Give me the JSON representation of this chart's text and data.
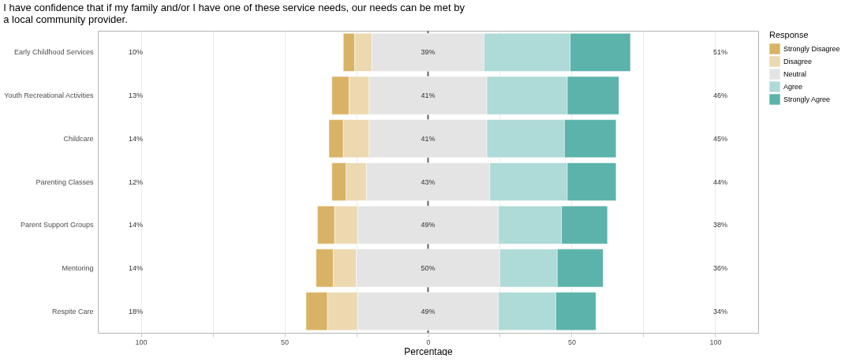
{
  "chart_data": {
    "type": "bar",
    "orientation": "horizontal",
    "title": "I have confidence that if my family and/or I have one of these service needs, our needs can be met by\na local community provider.",
    "xlabel": "Percentage",
    "legend_title": "Response",
    "legend": "right",
    "grid": "x",
    "categories": [
      "Early Childhood Services",
      "Youth Recreational Activities",
      "Childcare",
      "Parenting Classes",
      "Parent Support Groups",
      "Mentoring",
      "Respite Care"
    ],
    "series": [
      {
        "name": "Strongly Disagree",
        "color": "#d9b365",
        "values": [
          4,
          6,
          5,
          5,
          6,
          6,
          7.5
        ],
        "base": [
          -29.5,
          -33.5,
          -34.5,
          -33.5,
          -38.5,
          -39,
          -42.5
        ]
      },
      {
        "name": "Disagree",
        "color": "#ecd9b0",
        "values": [
          6,
          7,
          9,
          7,
          8,
          8,
          10.5
        ],
        "base": [
          -25.5,
          -27.5,
          -29.5,
          -28.5,
          -32.5,
          -33,
          -35
        ]
      },
      {
        "name": "Neutral",
        "color": "#e4e4e4",
        "values": [
          39,
          41,
          41,
          43,
          49,
          50,
          49
        ],
        "base": [
          -19.5,
          -20.5,
          -20.5,
          -21.5,
          -24.5,
          -25,
          -24.5
        ],
        "value_labels": [
          "39%",
          "41%",
          "41%",
          "43%",
          "49%",
          "50%",
          "49%"
        ]
      },
      {
        "name": "Agree",
        "color": "#aedad7",
        "values": [
          30,
          28,
          27,
          27,
          22,
          20,
          20
        ],
        "base": [
          19.5,
          20.5,
          20.5,
          21.5,
          24.5,
          25,
          24.5
        ]
      },
      {
        "name": "Strongly Agree",
        "color": "#5bb3ab",
        "values": [
          21,
          18,
          18,
          17,
          16,
          16,
          14
        ],
        "base": [
          49.5,
          48.5,
          47.5,
          48.5,
          46.5,
          45,
          44.5
        ]
      }
    ],
    "xlim": [
      -115,
      115
    ],
    "xticks": [
      {
        "value": -100,
        "label": "100"
      },
      {
        "value": -75,
        "label": null
      },
      {
        "value": -50,
        "label": "50"
      },
      {
        "value": -25,
        "label": null
      },
      0,
      {
        "value": 25,
        "label": null
      },
      50,
      {
        "value": 75,
        "label": null
      },
      100
    ],
    "ref_lines": [
      {
        "axis": "x",
        "value": 0,
        "color": "#666666"
      }
    ],
    "annotations": [
      "10%",
      "51%",
      "13%",
      "46%",
      "14%",
      "45%",
      "12%",
      "44%",
      "14%",
      "38%",
      "14%",
      "36%",
      "18%",
      "34%"
    ]
  }
}
